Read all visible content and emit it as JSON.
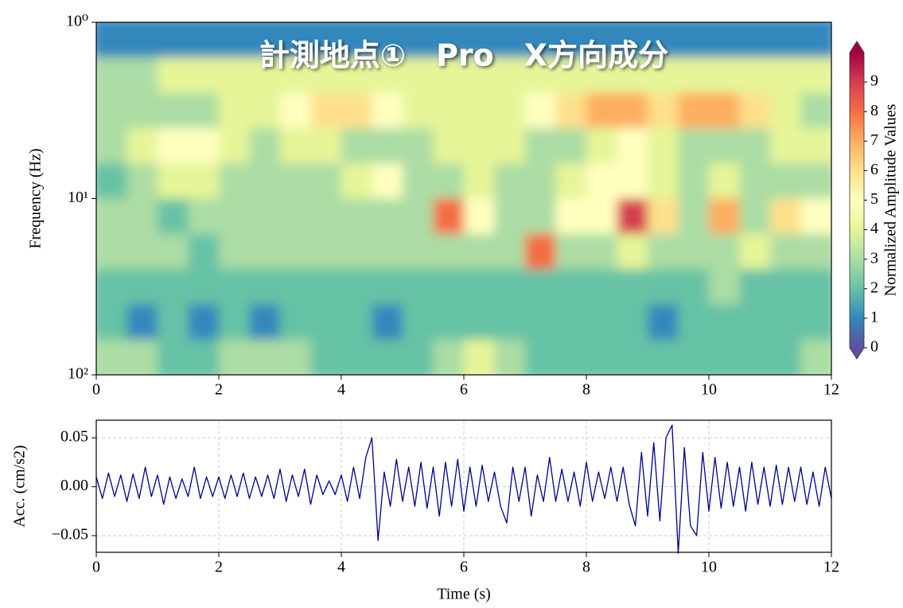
{
  "chart_data": [
    {
      "type": "heatmap",
      "title": "計測地点①　Pro　X方向成分",
      "ylabel": "Frequency (Hz)",
      "x_edges": [
        0,
        0.5,
        1,
        1.5,
        2,
        2.5,
        3,
        3.5,
        4,
        4.5,
        5,
        5.5,
        6,
        6.5,
        7,
        7.5,
        8,
        8.5,
        9,
        9.5,
        10,
        10.5,
        11,
        11.5,
        12
      ],
      "y_edges": [
        1,
        1.585,
        2.512,
        3.981,
        6.31,
        10,
        15.85,
        25.12,
        39.81,
        63.1,
        100
      ],
      "values": [
        [
          1,
          1,
          1,
          1,
          1,
          1,
          1,
          1,
          1,
          1,
          1,
          1,
          1,
          1,
          1,
          1,
          1,
          1,
          1,
          1,
          1,
          1,
          1,
          1
        ],
        [
          3,
          3,
          4,
          4,
          4,
          4,
          4,
          4,
          4,
          4,
          4,
          4,
          4,
          4,
          4,
          4,
          4,
          4,
          4,
          4,
          4,
          4,
          4,
          4
        ],
        [
          3,
          3,
          3,
          3,
          4,
          4,
          5,
          6,
          6,
          5,
          4,
          4,
          4,
          4,
          5,
          6,
          7,
          7,
          6,
          7,
          7,
          6,
          4,
          3
        ],
        [
          3,
          4,
          5,
          5,
          4,
          3,
          4,
          4,
          3,
          3,
          3,
          4,
          4,
          4,
          3,
          3,
          4,
          5,
          4,
          3,
          3,
          3,
          4,
          4
        ],
        [
          2,
          3,
          4,
          4,
          3,
          3,
          3,
          3,
          4,
          5,
          3,
          3,
          4,
          3,
          3,
          4,
          5,
          5,
          4,
          3,
          4,
          3,
          3,
          3
        ],
        [
          3,
          3,
          2,
          3,
          3,
          3,
          3,
          3,
          3,
          3,
          3,
          8,
          5,
          3,
          3,
          5,
          5,
          9,
          6,
          3,
          7,
          3,
          6,
          5
        ],
        [
          3,
          3,
          3,
          2,
          3,
          3,
          3,
          3,
          3,
          3,
          3,
          3,
          3,
          3,
          8,
          3,
          3,
          4,
          3,
          3,
          3,
          4,
          3,
          3
        ],
        [
          2,
          2,
          2,
          2,
          2,
          2,
          2,
          2,
          2,
          2,
          2,
          2,
          2,
          2,
          2,
          2,
          2,
          2,
          2,
          2,
          3,
          2,
          2,
          2
        ],
        [
          2,
          1,
          2,
          1,
          2,
          1,
          2,
          2,
          2,
          1,
          2,
          2,
          2,
          2,
          2,
          2,
          2,
          2,
          1,
          2,
          2,
          2,
          2,
          2
        ],
        [
          3,
          3,
          2,
          2,
          3,
          3,
          3,
          2,
          2,
          2,
          2,
          3,
          4,
          3,
          2,
          2,
          2,
          2,
          2,
          2,
          2,
          2,
          2,
          3
        ]
      ],
      "xlim": [
        0,
        12
      ],
      "xticks": [
        0,
        2,
        4,
        6,
        8,
        10,
        12
      ],
      "ylim": [
        1,
        100
      ],
      "yscale": "log",
      "yticks": [
        {
          "value": 1,
          "label": "10⁰"
        },
        {
          "value": 10,
          "label": "10¹"
        },
        {
          "value": 100,
          "label": "10²"
        }
      ],
      "colormap": [
        "#5e4fa2",
        "#3288bd",
        "#66c2a5",
        "#abdda4",
        "#e6f598",
        "#ffffbf",
        "#fee08b",
        "#fdae61",
        "#f46d43",
        "#d53e4f",
        "#9e0142"
      ],
      "clim": [
        0,
        10
      ],
      "cticks": [
        0,
        1,
        2,
        3,
        4,
        5,
        6,
        7,
        8,
        9
      ],
      "colorbar_label": "Normalized Amplitude Values"
    },
    {
      "type": "line",
      "xlabel": "Time (s)",
      "ylabel": "Acc. (cm/s2)",
      "color": "#00008b",
      "grid": true,
      "xlim": [
        0,
        12
      ],
      "xticks": [
        0,
        2,
        4,
        6,
        8,
        10,
        12
      ],
      "ylim": [
        -0.067,
        0.068
      ],
      "yticks": [
        {
          "value": -0.05,
          "label": "−0.05"
        },
        {
          "value": 0,
          "label": "0.00"
        },
        {
          "value": 0.05,
          "label": "0.05"
        }
      ],
      "x": [
        0,
        0.1,
        0.2,
        0.3,
        0.4,
        0.5,
        0.6,
        0.7,
        0.8,
        0.9,
        1,
        1.1,
        1.2,
        1.3,
        1.4,
        1.5,
        1.6,
        1.7,
        1.8,
        1.9,
        2,
        2.1,
        2.2,
        2.3,
        2.4,
        2.5,
        2.6,
        2.7,
        2.8,
        2.9,
        3,
        3.1,
        3.2,
        3.3,
        3.4,
        3.5,
        3.6,
        3.7,
        3.8,
        3.9,
        4,
        4.1,
        4.2,
        4.3,
        4.4,
        4.5,
        4.6,
        4.7,
        4.8,
        4.9,
        5,
        5.1,
        5.2,
        5.3,
        5.4,
        5.5,
        5.6,
        5.7,
        5.8,
        5.9,
        6,
        6.1,
        6.2,
        6.3,
        6.4,
        6.5,
        6.6,
        6.7,
        6.8,
        6.9,
        7,
        7.1,
        7.2,
        7.3,
        7.4,
        7.5,
        7.6,
        7.7,
        7.8,
        7.9,
        8,
        8.1,
        8.2,
        8.3,
        8.4,
        8.5,
        8.6,
        8.7,
        8.8,
        8.9,
        9,
        9.1,
        9.2,
        9.3,
        9.4,
        9.5,
        9.6,
        9.7,
        9.8,
        9.9,
        10,
        10.1,
        10.2,
        10.3,
        10.4,
        10.5,
        10.6,
        10.7,
        10.8,
        10.9,
        11,
        11.1,
        11.2,
        11.3,
        11.4,
        11.5,
        11.6,
        11.7,
        11.8,
        11.9,
        12
      ],
      "values": [
        0.01,
        -0.012,
        0.014,
        -0.01,
        0.012,
        -0.015,
        0.013,
        -0.012,
        0.02,
        -0.01,
        0.012,
        -0.018,
        0.01,
        -0.012,
        0.008,
        -0.01,
        0.02,
        -0.012,
        0.01,
        -0.01,
        0.01,
        -0.012,
        0.012,
        -0.01,
        0.014,
        -0.012,
        0.01,
        -0.01,
        0.012,
        -0.012,
        0.018,
        -0.015,
        0.012,
        -0.01,
        0.018,
        -0.018,
        0.012,
        -0.008,
        0.006,
        -0.008,
        0.012,
        -0.015,
        0.02,
        -0.012,
        0.03,
        0.05,
        -0.055,
        0.015,
        -0.02,
        0.028,
        -0.015,
        0.02,
        -0.02,
        0.025,
        -0.022,
        0.02,
        -0.03,
        0.025,
        -0.02,
        0.028,
        -0.025,
        0.02,
        -0.02,
        0.022,
        -0.015,
        0.015,
        -0.02,
        -0.037,
        0.02,
        -0.015,
        0.02,
        -0.03,
        0.012,
        -0.015,
        0.03,
        -0.015,
        0.018,
        -0.015,
        0.015,
        -0.02,
        0.025,
        -0.015,
        0.015,
        -0.012,
        0.02,
        -0.015,
        0.02,
        -0.018,
        -0.04,
        0.035,
        -0.03,
        0.045,
        -0.035,
        0.05,
        0.063,
        -0.068,
        0.04,
        -0.04,
        -0.05,
        0.035,
        -0.025,
        0.03,
        -0.022,
        0.025,
        -0.02,
        0.02,
        -0.025,
        0.025,
        -0.018,
        0.02,
        -0.02,
        0.022,
        -0.018,
        0.02,
        -0.015,
        0.02,
        -0.018,
        0.015,
        -0.02,
        0.02,
        -0.012
      ]
    }
  ]
}
